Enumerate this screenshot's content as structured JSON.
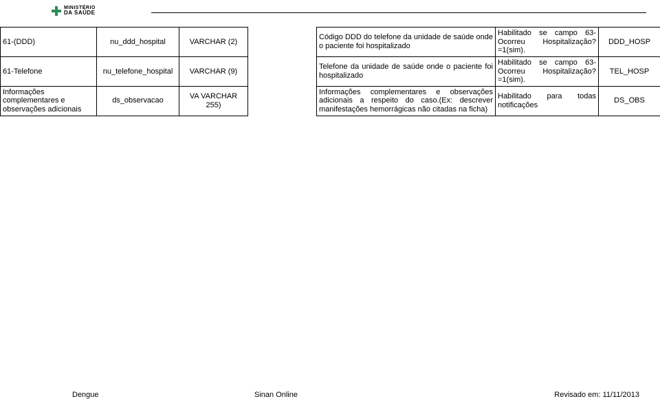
{
  "logo": {
    "line1": "MINISTÉRIO",
    "line2": "DA SAÚDE"
  },
  "table": {
    "rows": [
      {
        "field": "61-(DDD)",
        "dbcol": "nu_ddd_hospital",
        "type": "VARCHAR (2)",
        "blank": "",
        "desc": "Código DDD do telefone da unidade de saúde onde o paciente foi hospitalizado",
        "cond": "Habilitado se campo 63-Ocorreu Hospitalização? =1(sim).",
        "code": "DDD_HOSP"
      },
      {
        "field": "61-Telefone",
        "dbcol": "nu_telefone_hospital",
        "type": "VARCHAR (9)",
        "blank": "",
        "desc": "Telefone da unidade de saúde onde o paciente foi hospitalizado",
        "cond": "Habilitado se campo 63-Ocorreu Hospitalização? =1(sim).",
        "code": "TEL_HOSP"
      },
      {
        "field": "Informações complementares e observações adicionais",
        "dbcol": "ds_observacao",
        "type": "VA VARCHAR 255)",
        "blank": "",
        "desc": "Informações complementares e observações adicionais a respeito do caso.(Ex: descrever manifestações hemorrágicas não citadas na ficha)",
        "cond": "Habilitado para todas notificações",
        "code": "DS_OBS"
      }
    ]
  },
  "footer": {
    "left": "Dengue",
    "center": "Sinan Online",
    "right": "Revisado em: 11/11/2013"
  }
}
